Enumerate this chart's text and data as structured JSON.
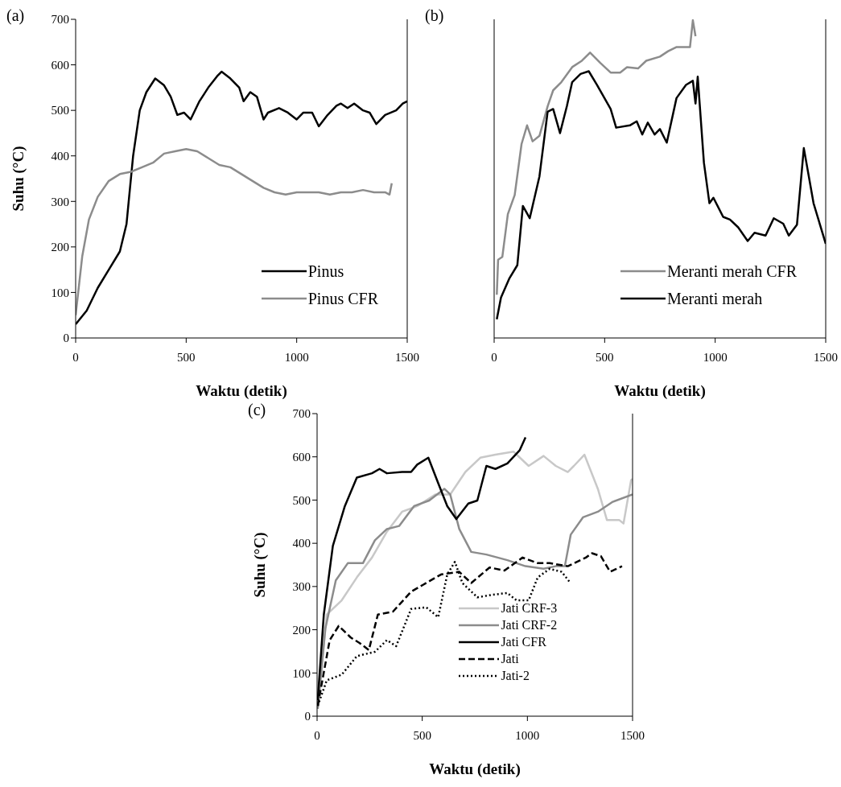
{
  "chart_data": [
    {
      "type": "line",
      "title": "(a)",
      "xlabel": "Waktu (detik)",
      "ylabel": "Suhu (°C)",
      "xlim": [
        0,
        1500
      ],
      "xticks": [
        0,
        500,
        1000,
        1500
      ],
      "ylim": [
        0,
        700
      ],
      "yticks": [
        0,
        100,
        200,
        300,
        400,
        500,
        600,
        700
      ],
      "legend": "bottom right",
      "line_style": "solid",
      "series": [
        {
          "name": "Pinus",
          "color": "#000000",
          "x": [
            0,
            50,
            100,
            150,
            200,
            230,
            260,
            290,
            320,
            360,
            400,
            430,
            460,
            490,
            520,
            560,
            600,
            640,
            660,
            700,
            740,
            760,
            790,
            820,
            850,
            870,
            920,
            960,
            1000,
            1030,
            1070,
            1100,
            1140,
            1180,
            1200,
            1230,
            1260,
            1300,
            1330,
            1360,
            1400,
            1450,
            1480,
            1500
          ],
          "values": [
            30,
            60,
            110,
            150,
            190,
            250,
            400,
            500,
            540,
            570,
            555,
            530,
            490,
            495,
            480,
            520,
            550,
            575,
            585,
            570,
            550,
            520,
            540,
            530,
            480,
            495,
            505,
            495,
            480,
            495,
            495,
            465,
            490,
            510,
            515,
            505,
            515,
            500,
            495,
            470,
            490,
            500,
            515,
            520
          ]
        },
        {
          "name": "Pinus CFR",
          "color": "#8c8c8c",
          "x": [
            0,
            30,
            60,
            100,
            150,
            200,
            250,
            300,
            350,
            400,
            450,
            500,
            550,
            600,
            650,
            700,
            750,
            800,
            850,
            900,
            950,
            1000,
            1050,
            1100,
            1150,
            1200,
            1250,
            1300,
            1350,
            1400,
            1420,
            1430
          ],
          "values": [
            50,
            180,
            260,
            310,
            345,
            360,
            365,
            375,
            385,
            405,
            410,
            415,
            410,
            395,
            380,
            375,
            360,
            345,
            330,
            320,
            315,
            320,
            320,
            320,
            315,
            320,
            320,
            325,
            320,
            320,
            315,
            340
          ]
        }
      ]
    },
    {
      "type": "line",
      "title": "(b)",
      "xlabel": "Waktu (detik)",
      "xlim": [
        0,
        1500
      ],
      "xticks": [
        0,
        500,
        1000,
        1500
      ],
      "ylim": [
        0,
        700
      ],
      "yticks": [
        0,
        100,
        200,
        300,
        400,
        500,
        600,
        700
      ],
      "tick_labels": "x",
      "legend": "bottom right",
      "line_style": "solid",
      "series": [
        {
          "name": "Meranti merah CFR",
          "color": "#8c8c8c",
          "x": [
            12,
            18,
            37,
            62,
            93,
            124,
            149,
            174,
            205,
            242,
            267,
            304,
            353,
            397,
            434,
            481,
            527,
            570,
            601,
            651,
            688,
            750,
            787,
            824,
            886,
            899,
            911
          ],
          "values": [
            95,
            172,
            178,
            272,
            314,
            426,
            467,
            432,
            444,
            509,
            544,
            562,
            595,
            609,
            627,
            604,
            583,
            583,
            595,
            592,
            609,
            618,
            630,
            639,
            639,
            698,
            663
          ]
        },
        {
          "name": "Meranti merah",
          "color": "#000000",
          "x": [
            12,
            31,
            68,
            105,
            130,
            161,
            205,
            242,
            267,
            298,
            329,
            353,
            391,
            428,
            465,
            527,
            552,
            614,
            645,
            670,
            695,
            726,
            750,
            781,
            825,
            868,
            899,
            911,
            921,
            949,
            974,
            992,
            1036,
            1067,
            1104,
            1147,
            1178,
            1228,
            1265,
            1308,
            1333,
            1370,
            1401,
            1445,
            1500
          ],
          "values": [
            41,
            89,
            130,
            160,
            290,
            263,
            355,
            497,
            503,
            450,
            509,
            562,
            580,
            586,
            556,
            503,
            462,
            467,
            476,
            447,
            473,
            447,
            459,
            429,
            527,
            556,
            565,
            515,
            574,
            385,
            296,
            308,
            266,
            260,
            243,
            213,
            231,
            225,
            263,
            251,
            225,
            249,
            417,
            296,
            207
          ]
        }
      ]
    },
    {
      "type": "line",
      "title": "(c)",
      "xlabel": "Waktu (detik)",
      "ylabel": "Suhu (°C)",
      "xlim": [
        0,
        1500
      ],
      "xticks": [
        0,
        500,
        1000,
        1500
      ],
      "ylim": [
        0,
        700
      ],
      "yticks": [
        0,
        100,
        200,
        300,
        400,
        500,
        600,
        700
      ],
      "legend": "bottom",
      "series": [
        {
          "name": "Jati CRF-3",
          "color": "#c8c8c8",
          "line_style": "solid",
          "x": [
            3,
            46,
            117,
            189,
            261,
            332,
            404,
            476,
            562,
            633,
            705,
            776,
            848,
            934,
            1006,
            1077,
            1135,
            1192,
            1221,
            1271,
            1335,
            1378,
            1436,
            1457,
            1493,
            1500
          ],
          "values": [
            17,
            235,
            268,
            321,
            367,
            427,
            473,
            486,
            513,
            513,
            565,
            598,
            605,
            612,
            579,
            602,
            579,
            565,
            579,
            605,
            526,
            454,
            454,
            446,
            546,
            549
          ]
        },
        {
          "name": "Jati CRF-2",
          "color": "#8c8c8c",
          "line_style": "solid",
          "x": [
            3,
            39,
            89,
            146,
            218,
            275,
            332,
            390,
            461,
            533,
            605,
            633,
            676,
            733,
            805,
            905,
            991,
            1077,
            1135,
            1178,
            1206,
            1264,
            1335,
            1406,
            1500
          ],
          "values": [
            17,
            202,
            314,
            354,
            354,
            407,
            433,
            440,
            486,
            499,
            526,
            513,
            433,
            380,
            374,
            361,
            347,
            341,
            347,
            347,
            420,
            460,
            473,
            496,
            513
          ]
        },
        {
          "name": "Jati CFR",
          "color": "#000000",
          "line_style": "solid",
          "x": [
            3,
            32,
            75,
            132,
            189,
            261,
            297,
            332,
            404,
            447,
            476,
            529,
            576,
            619,
            662,
            719,
            762,
            805,
            848,
            905,
            963,
            991
          ],
          "values": [
            37,
            235,
            394,
            486,
            552,
            562,
            572,
            562,
            565,
            565,
            582,
            598,
            539,
            486,
            456,
            492,
            499,
            579,
            572,
            585,
            615,
            645
          ]
        },
        {
          "name": "Jati",
          "color": "#000000",
          "line_style": "dashed",
          "x": [
            3,
            60,
            103,
            160,
            203,
            246,
            289,
            361,
            447,
            504,
            590,
            676,
            733,
            820,
            891,
            977,
            1049,
            1106,
            1192,
            1278,
            1307,
            1350,
            1393,
            1450
          ],
          "values": [
            24,
            176,
            209,
            182,
            169,
            153,
            235,
            242,
            288,
            304,
            328,
            334,
            308,
            344,
            337,
            367,
            354,
            354,
            347,
            367,
            377,
            370,
            334,
            347
          ]
        },
        {
          "name": "Jati-2",
          "color": "#000000",
          "line_style": "dotted",
          "x": [
            3,
            46,
            117,
            189,
            275,
            332,
            376,
            447,
            519,
            576,
            619,
            655,
            691,
            762,
            834,
            905,
            948,
            1006,
            1049,
            1106,
            1163,
            1200
          ],
          "values": [
            24,
            83,
            96,
            139,
            149,
            176,
            162,
            248,
            252,
            229,
            328,
            357,
            308,
            275,
            281,
            285,
            268,
            268,
            321,
            341,
            334,
            311
          ]
        }
      ]
    }
  ]
}
